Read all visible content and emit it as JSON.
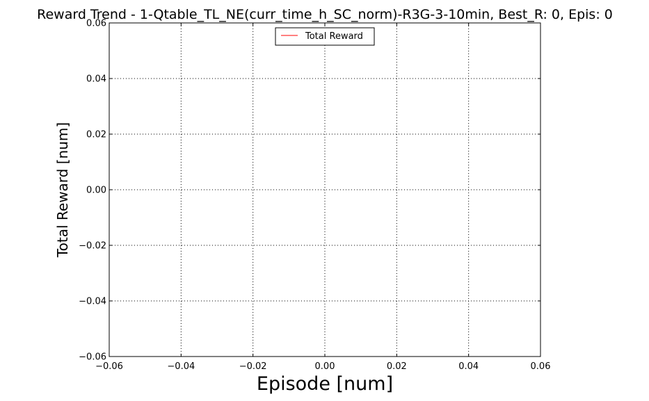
{
  "chart_data": {
    "type": "line",
    "title": "Reward Trend - 1-Qtable_TL_NE(curr_time_h_SC_norm)-R3G-3-10min, Best_R: 0, Epis: 0",
    "xlabel": "Episode [num]",
    "ylabel": "Total Reward [num]",
    "xlim": [
      -0.06,
      0.06
    ],
    "ylim": [
      -0.06,
      0.06
    ],
    "x_ticks": [
      "−0.06",
      "−0.04",
      "−0.02",
      "0.00",
      "0.02",
      "0.04",
      "0.06"
    ],
    "y_ticks": [
      "−0.06",
      "−0.04",
      "−0.02",
      "0.00",
      "0.02",
      "0.04",
      "0.06"
    ],
    "x_tick_values": [
      -0.06,
      -0.04,
      -0.02,
      0.0,
      0.02,
      0.04,
      0.06
    ],
    "y_tick_values": [
      -0.06,
      -0.04,
      -0.02,
      0.0,
      0.02,
      0.04,
      0.06
    ],
    "grid": true,
    "legend_position": "top-center",
    "series": [
      {
        "name": "Total Reward",
        "color": "#ff0000",
        "x": [],
        "y": []
      }
    ]
  }
}
